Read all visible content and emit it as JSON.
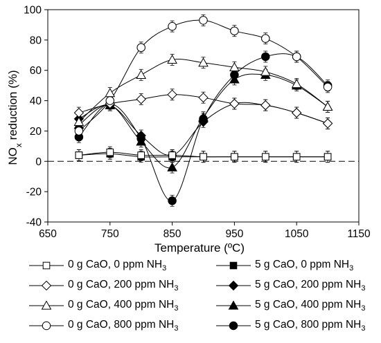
{
  "chart_data": {
    "type": "line",
    "xlabel": "Temperature (ºC)",
    "ylabel": "NOx reduction (%)",
    "ylabel_main": "NO",
    "ylabel_sub": "x",
    "ylabel_rest": " reduction (%)",
    "xlim": [
      650,
      1150
    ],
    "ylim": [
      -40,
      100
    ],
    "xticks": [
      "650",
      "750",
      "850",
      "950",
      "1050",
      "1150"
    ],
    "yticks": [
      "-40",
      "-20",
      "0",
      "20",
      "40",
      "60",
      "80",
      "100"
    ],
    "grid": false,
    "reference_line": {
      "y": 0,
      "style": "dashed"
    },
    "legend_position": "bottom",
    "series": [
      {
        "name": "0 g CaO, 0 ppm NH3",
        "label_main": "0 g CaO, 0 ppm NH",
        "label_sub": "3",
        "marker": "square",
        "filled": false,
        "x": [
          700,
          750,
          800,
          850,
          900,
          950,
          1000,
          1050,
          1100
        ],
        "y": [
          4,
          6,
          4,
          4,
          3,
          3,
          3,
          3,
          3
        ]
      },
      {
        "name": "5 g CaO, 0 ppm NH3",
        "label_main": "5 g CaO, 0 ppm NH",
        "label_sub": "3",
        "marker": "square",
        "filled": true,
        "x": [
          700,
          750,
          800,
          850,
          900,
          950,
          1000,
          1050,
          1100
        ],
        "y": [
          4,
          5,
          3,
          3,
          3,
          3,
          3,
          3,
          3
        ]
      },
      {
        "name": "0 g CaO, 200 ppm NH3",
        "label_main": "0 g CaO, 200 ppm NH",
        "label_sub": "3",
        "marker": "diamond",
        "filled": false,
        "x": [
          700,
          750,
          800,
          850,
          900,
          950,
          1000,
          1050,
          1100
        ],
        "y": [
          32,
          38,
          41,
          44,
          42,
          38,
          37,
          32,
          25
        ]
      },
      {
        "name": "5 g CaO, 200 ppm NH3",
        "label_main": "5 g CaO, 200 ppm NH",
        "label_sub": "3",
        "marker": "diamond",
        "filled": true,
        "x": [
          700,
          750,
          800,
          850,
          900,
          950,
          1000,
          1050,
          1100
        ],
        "y": [
          28,
          37,
          17,
          4,
          26,
          38,
          37,
          32,
          25
        ]
      },
      {
        "name": "0 g CaO, 400 ppm NH3",
        "label_main": "0 g CaO, 400 ppm NH",
        "label_sub": "3",
        "marker": "triangle",
        "filled": false,
        "x": [
          700,
          750,
          800,
          850,
          900,
          950,
          1000,
          1050,
          1100
        ],
        "y": [
          26,
          45,
          57,
          67,
          65,
          62,
          59,
          51,
          36
        ]
      },
      {
        "name": "5 g CaO, 400 ppm NH3",
        "label_main": "5 g CaO, 400 ppm NH",
        "label_sub": "3",
        "marker": "triangle",
        "filled": true,
        "x": [
          700,
          750,
          800,
          850,
          900,
          950,
          1000,
          1050,
          1100
        ],
        "y": [
          24,
          37,
          13,
          -4,
          29,
          54,
          57,
          50,
          36
        ]
      },
      {
        "name": "0 g CaO, 800 ppm NH3",
        "label_main": "0 g CaO, 800 ppm NH",
        "label_sub": "3",
        "marker": "circle",
        "filled": false,
        "x": [
          700,
          750,
          800,
          850,
          900,
          950,
          1000,
          1050,
          1100
        ],
        "y": [
          20,
          40,
          75,
          89,
          93,
          86,
          81,
          69,
          49
        ]
      },
      {
        "name": "5 g CaO, 800 ppm NH3",
        "label_main": "5 g CaO, 800 ppm NH",
        "label_sub": "3",
        "marker": "circle",
        "filled": true,
        "x": [
          700,
          750,
          800,
          850,
          900,
          950,
          1000,
          1050,
          1100
        ],
        "y": [
          16,
          38,
          15,
          -26,
          28,
          57,
          69,
          69,
          50
        ]
      }
    ]
  }
}
